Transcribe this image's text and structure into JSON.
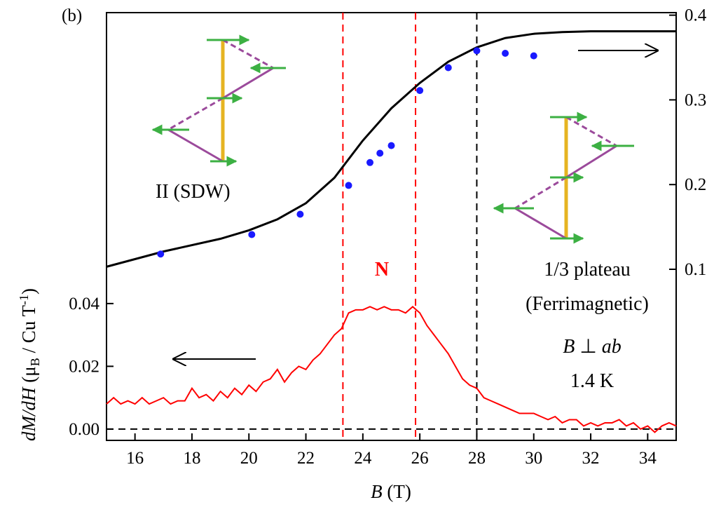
{
  "chart_data": {
    "type": "line",
    "panel_label": "(b)",
    "xlabel_parts": [
      "B",
      " (T)"
    ],
    "ylabel_parts": [
      "dM/dH",
      " (μ",
      "B",
      " / Cu T",
      "-1",
      ")"
    ],
    "xlim": [
      15,
      35
    ],
    "xticks": [
      16,
      18,
      20,
      22,
      24,
      26,
      28,
      30,
      32,
      34
    ],
    "ylim": [
      -0.0036,
      0.1327
    ],
    "yticks": [
      {
        "value": 0,
        "label": "0.00"
      },
      {
        "value": 0.02,
        "label": "0.02"
      },
      {
        "value": 0.04,
        "label": "0.04"
      }
    ],
    "y2lim": [
      -0.102,
      0.403
    ],
    "y2ticks": [
      0.1,
      0.2,
      0.3,
      0.4
    ],
    "series": [
      {
        "kind": "line",
        "color": "#000000",
        "axis": "y2",
        "x": [
          15,
          17,
          19,
          20,
          21,
          22,
          23,
          24,
          25,
          26,
          27,
          28,
          29,
          30,
          31,
          32,
          35
        ],
        "values": [
          0.103,
          0.121,
          0.136,
          0.146,
          0.159,
          0.178,
          0.208,
          0.252,
          0.29,
          0.32,
          0.345,
          0.362,
          0.373,
          0.378,
          0.38,
          0.381,
          0.381
        ]
      },
      {
        "kind": "scatter",
        "color": "#1a1aff",
        "axis": "y2",
        "x": [
          16.9,
          20.1,
          21.8,
          23.5,
          24.25,
          24.6,
          25.0,
          26.0,
          27.0,
          28.0,
          29.0,
          30.0
        ],
        "values": [
          0.118,
          0.141,
          0.165,
          0.199,
          0.226,
          0.237,
          0.246,
          0.311,
          0.338,
          0.358,
          0.355,
          0.352
        ]
      },
      {
        "kind": "line",
        "color": "#ff0000",
        "axis": "y",
        "x": [
          15,
          15.25,
          15.5,
          15.75,
          16,
          16.25,
          16.5,
          16.75,
          17,
          17.25,
          17.5,
          17.75,
          18,
          18.25,
          18.5,
          18.75,
          19,
          19.25,
          19.5,
          19.75,
          20,
          20.25,
          20.5,
          20.75,
          21,
          21.25,
          21.5,
          21.75,
          22,
          22.25,
          22.5,
          22.75,
          23,
          23.25,
          23.5,
          23.75,
          24,
          24.25,
          24.5,
          24.75,
          25,
          25.25,
          25.5,
          25.75,
          26,
          26.25,
          26.5,
          26.75,
          27,
          27.25,
          27.5,
          27.75,
          28,
          28.25,
          28.5,
          28.75,
          29,
          29.25,
          29.5,
          29.75,
          30,
          30.25,
          30.5,
          30.75,
          31,
          31.25,
          31.5,
          31.75,
          32,
          32.25,
          32.5,
          32.75,
          33,
          33.25,
          33.5,
          33.75,
          34,
          34.25,
          34.5,
          34.75,
          35
        ],
        "values": [
          0.008,
          0.01,
          0.008,
          0.009,
          0.008,
          0.01,
          0.008,
          0.009,
          0.01,
          0.008,
          0.009,
          0.009,
          0.013,
          0.01,
          0.011,
          0.009,
          0.012,
          0.01,
          0.013,
          0.011,
          0.014,
          0.012,
          0.015,
          0.016,
          0.019,
          0.015,
          0.018,
          0.02,
          0.019,
          0.022,
          0.024,
          0.027,
          0.03,
          0.032,
          0.037,
          0.038,
          0.038,
          0.039,
          0.038,
          0.039,
          0.038,
          0.038,
          0.037,
          0.039,
          0.037,
          0.033,
          0.03,
          0.027,
          0.024,
          0.02,
          0.016,
          0.014,
          0.013,
          0.01,
          0.009,
          0.008,
          0.007,
          0.006,
          0.005,
          0.005,
          0.005,
          0.004,
          0.003,
          0.004,
          0.002,
          0.003,
          0.003,
          0.001,
          0.002,
          0.001,
          0.002,
          0.002,
          0.003,
          0.001,
          0.002,
          0.0,
          0.001,
          -0.001,
          0.001,
          0.002,
          0.001
        ]
      }
    ],
    "vlines": [
      {
        "x": 23.3,
        "color": "#ff0000"
      },
      {
        "x": 25.85,
        "color": "#ff0000"
      },
      {
        "x": 28,
        "color": "#000000"
      }
    ],
    "hline": 0,
    "annotations": {
      "phase1": "II (SDW)",
      "middle": "N",
      "plateau": "1/3 plateau",
      "plateau_sub": "(Ferrimagnetic)",
      "field_dir_parts": [
        "B",
        " ⊥ ",
        "ab"
      ],
      "temperature": "1.4 K"
    }
  }
}
